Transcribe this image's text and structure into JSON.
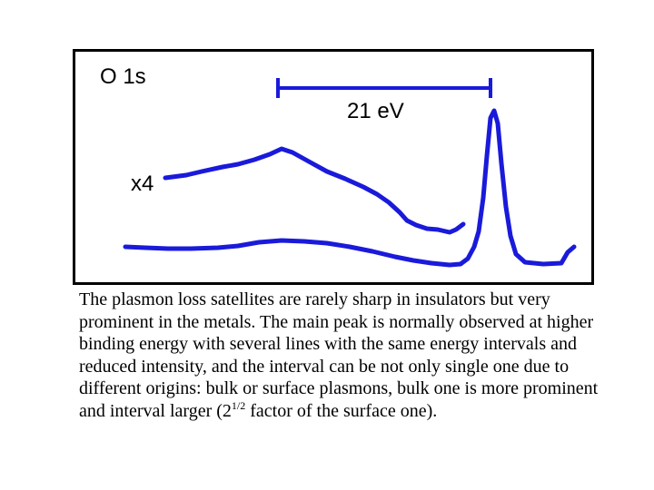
{
  "figure": {
    "spectrum_label": "O 1s",
    "energy_scale_label": "21 eV",
    "magnification_label": "x4",
    "line_color": "#1a1adb",
    "frame_color": "#000000"
  },
  "caption": {
    "part1": "The plasmon loss satellites are rarely sharp in insulators but very prominent in the metals. The main peak is normally observed at higher binding energy with several lines with the same energy intervals and reduced intensity, and the interval can be not only single one due to different origins: bulk or surface plasmons, bulk one is more prominent and interval larger (2",
    "superscript": "1/2",
    "part2": " factor of the surface one)."
  }
}
